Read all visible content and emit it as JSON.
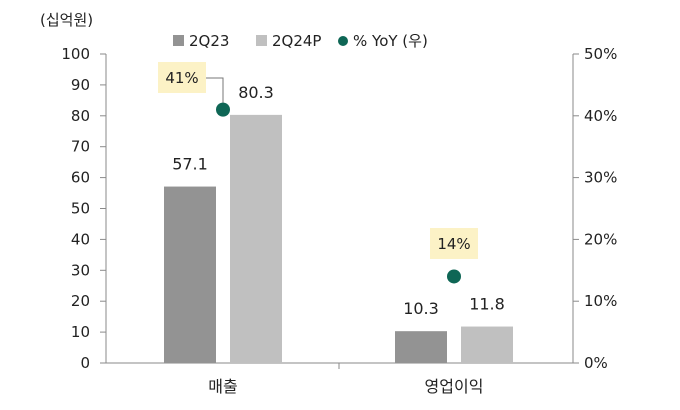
{
  "chart_data": {
    "type": "bar",
    "unit_label": "(십억원)",
    "categories": [
      "매출",
      "영업이익"
    ],
    "series": [
      {
        "name": "2Q23",
        "values": [
          57.1,
          10.3
        ],
        "color": "#939393",
        "axis": "left",
        "kind": "bar"
      },
      {
        "name": "2Q24P",
        "values": [
          80.3,
          11.8
        ],
        "color": "#c0c0c0",
        "axis": "left",
        "kind": "bar"
      },
      {
        "name": "% YoY (우)",
        "values": [
          41,
          14
        ],
        "color": "#0e6655",
        "axis": "right",
        "kind": "scatter"
      }
    ],
    "bar_labels": [
      [
        "57.1",
        "10.3"
      ],
      [
        "80.3",
        "11.8"
      ]
    ],
    "yoy_labels": [
      "41%",
      "14%"
    ],
    "ylim_left": [
      0,
      100
    ],
    "yticks_left": [
      "0",
      "10",
      "20",
      "30",
      "40",
      "50",
      "60",
      "70",
      "80",
      "90",
      "100"
    ],
    "ylim_right": [
      0,
      50
    ],
    "yticks_right": [
      "0%",
      "10%",
      "20%",
      "30%",
      "40%",
      "50%"
    ],
    "legend_position": "top",
    "callout_fill": "#fcf2c6",
    "grid": false
  }
}
